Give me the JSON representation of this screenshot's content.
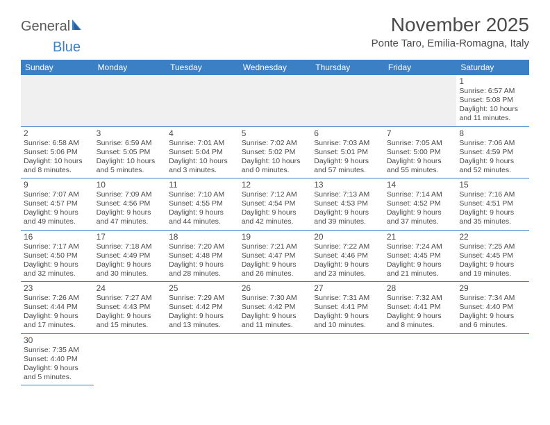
{
  "logo": {
    "text1": "General",
    "text2": "Blue"
  },
  "title": "November 2025",
  "location": "Ponte Taro, Emilia-Romagna, Italy",
  "colors": {
    "header_bg": "#3b7fc4",
    "header_text": "#ffffff",
    "border": "#3b7fc4",
    "text": "#4a4a4a",
    "empty_bg": "#f0f0f0"
  },
  "day_headers": [
    "Sunday",
    "Monday",
    "Tuesday",
    "Wednesday",
    "Thursday",
    "Friday",
    "Saturday"
  ],
  "weeks": [
    [
      null,
      null,
      null,
      null,
      null,
      null,
      {
        "n": "1",
        "sr": "6:57 AM",
        "ss": "5:08 PM",
        "dl": "10 hours and 11 minutes."
      }
    ],
    [
      {
        "n": "2",
        "sr": "6:58 AM",
        "ss": "5:06 PM",
        "dl": "10 hours and 8 minutes."
      },
      {
        "n": "3",
        "sr": "6:59 AM",
        "ss": "5:05 PM",
        "dl": "10 hours and 5 minutes."
      },
      {
        "n": "4",
        "sr": "7:01 AM",
        "ss": "5:04 PM",
        "dl": "10 hours and 3 minutes."
      },
      {
        "n": "5",
        "sr": "7:02 AM",
        "ss": "5:02 PM",
        "dl": "10 hours and 0 minutes."
      },
      {
        "n": "6",
        "sr": "7:03 AM",
        "ss": "5:01 PM",
        "dl": "9 hours and 57 minutes."
      },
      {
        "n": "7",
        "sr": "7:05 AM",
        "ss": "5:00 PM",
        "dl": "9 hours and 55 minutes."
      },
      {
        "n": "8",
        "sr": "7:06 AM",
        "ss": "4:59 PM",
        "dl": "9 hours and 52 minutes."
      }
    ],
    [
      {
        "n": "9",
        "sr": "7:07 AM",
        "ss": "4:57 PM",
        "dl": "9 hours and 49 minutes."
      },
      {
        "n": "10",
        "sr": "7:09 AM",
        "ss": "4:56 PM",
        "dl": "9 hours and 47 minutes."
      },
      {
        "n": "11",
        "sr": "7:10 AM",
        "ss": "4:55 PM",
        "dl": "9 hours and 44 minutes."
      },
      {
        "n": "12",
        "sr": "7:12 AM",
        "ss": "4:54 PM",
        "dl": "9 hours and 42 minutes."
      },
      {
        "n": "13",
        "sr": "7:13 AM",
        "ss": "4:53 PM",
        "dl": "9 hours and 39 minutes."
      },
      {
        "n": "14",
        "sr": "7:14 AM",
        "ss": "4:52 PM",
        "dl": "9 hours and 37 minutes."
      },
      {
        "n": "15",
        "sr": "7:16 AM",
        "ss": "4:51 PM",
        "dl": "9 hours and 35 minutes."
      }
    ],
    [
      {
        "n": "16",
        "sr": "7:17 AM",
        "ss": "4:50 PM",
        "dl": "9 hours and 32 minutes."
      },
      {
        "n": "17",
        "sr": "7:18 AM",
        "ss": "4:49 PM",
        "dl": "9 hours and 30 minutes."
      },
      {
        "n": "18",
        "sr": "7:20 AM",
        "ss": "4:48 PM",
        "dl": "9 hours and 28 minutes."
      },
      {
        "n": "19",
        "sr": "7:21 AM",
        "ss": "4:47 PM",
        "dl": "9 hours and 26 minutes."
      },
      {
        "n": "20",
        "sr": "7:22 AM",
        "ss": "4:46 PM",
        "dl": "9 hours and 23 minutes."
      },
      {
        "n": "21",
        "sr": "7:24 AM",
        "ss": "4:45 PM",
        "dl": "9 hours and 21 minutes."
      },
      {
        "n": "22",
        "sr": "7:25 AM",
        "ss": "4:45 PM",
        "dl": "9 hours and 19 minutes."
      }
    ],
    [
      {
        "n": "23",
        "sr": "7:26 AM",
        "ss": "4:44 PM",
        "dl": "9 hours and 17 minutes."
      },
      {
        "n": "24",
        "sr": "7:27 AM",
        "ss": "4:43 PM",
        "dl": "9 hours and 15 minutes."
      },
      {
        "n": "25",
        "sr": "7:29 AM",
        "ss": "4:42 PM",
        "dl": "9 hours and 13 minutes."
      },
      {
        "n": "26",
        "sr": "7:30 AM",
        "ss": "4:42 PM",
        "dl": "9 hours and 11 minutes."
      },
      {
        "n": "27",
        "sr": "7:31 AM",
        "ss": "4:41 PM",
        "dl": "9 hours and 10 minutes."
      },
      {
        "n": "28",
        "sr": "7:32 AM",
        "ss": "4:41 PM",
        "dl": "9 hours and 8 minutes."
      },
      {
        "n": "29",
        "sr": "7:34 AM",
        "ss": "4:40 PM",
        "dl": "9 hours and 6 minutes."
      }
    ],
    [
      {
        "n": "30",
        "sr": "7:35 AM",
        "ss": "4:40 PM",
        "dl": "9 hours and 5 minutes."
      },
      null,
      null,
      null,
      null,
      null,
      null
    ]
  ]
}
